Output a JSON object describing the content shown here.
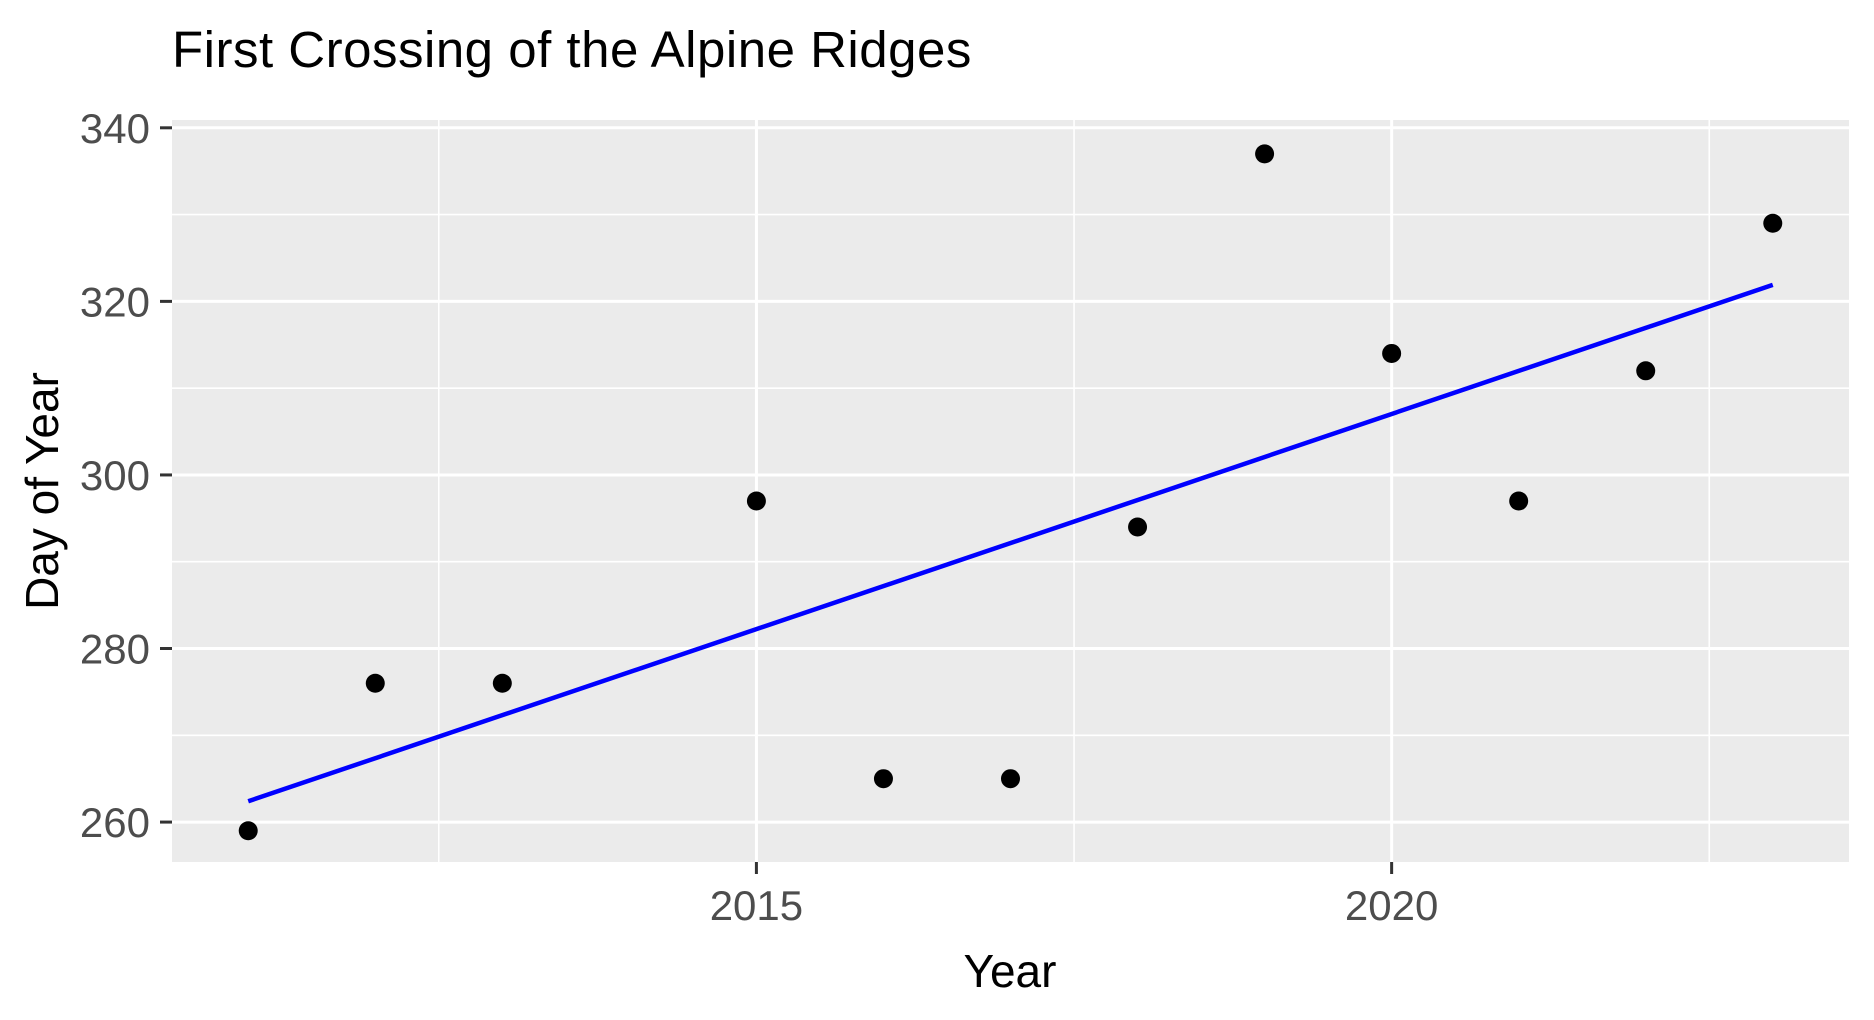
{
  "title": "First Crossing of the Alpine Ridges",
  "chart_data": {
    "type": "scatter",
    "title": "First Crossing of the Alpine Ridges",
    "xlabel": "Year",
    "ylabel": "Day of Year",
    "x": [
      2011,
      2012,
      2013,
      2015,
      2016,
      2017,
      2018,
      2019,
      2020,
      2021,
      2022,
      2023
    ],
    "y": [
      259,
      276,
      276,
      297,
      265,
      265,
      294,
      337,
      314,
      297,
      312,
      329
    ],
    "trend_line": {
      "type": "linear-fit",
      "x_start": 2011,
      "y_start": 262.4,
      "x_end": 2023,
      "y_end": 321.9,
      "color": "#0000FF"
    },
    "x_ticks": [
      "2015",
      "2020"
    ],
    "x_tick_values": [
      2015,
      2020
    ],
    "x_minor_values": [
      2012.5,
      2017.5,
      2022.5
    ],
    "y_ticks": [
      "260",
      "280",
      "300",
      "320",
      "340"
    ],
    "y_tick_values": [
      260,
      280,
      300,
      320,
      340
    ],
    "y_minor_values": [
      270,
      290,
      310,
      330
    ],
    "xlim": [
      2010.4,
      2023.6
    ],
    "ylim": [
      255.4,
      340.9
    ],
    "grid": true,
    "legend": "none",
    "colors": {
      "panel_bg": "#EBEBEB",
      "gridline": "#FFFFFF",
      "point": "#000000",
      "trend": "#0000FF",
      "tick_text": "#4D4D4D",
      "tick_mark": "#333333",
      "title_text": "#000000"
    }
  }
}
